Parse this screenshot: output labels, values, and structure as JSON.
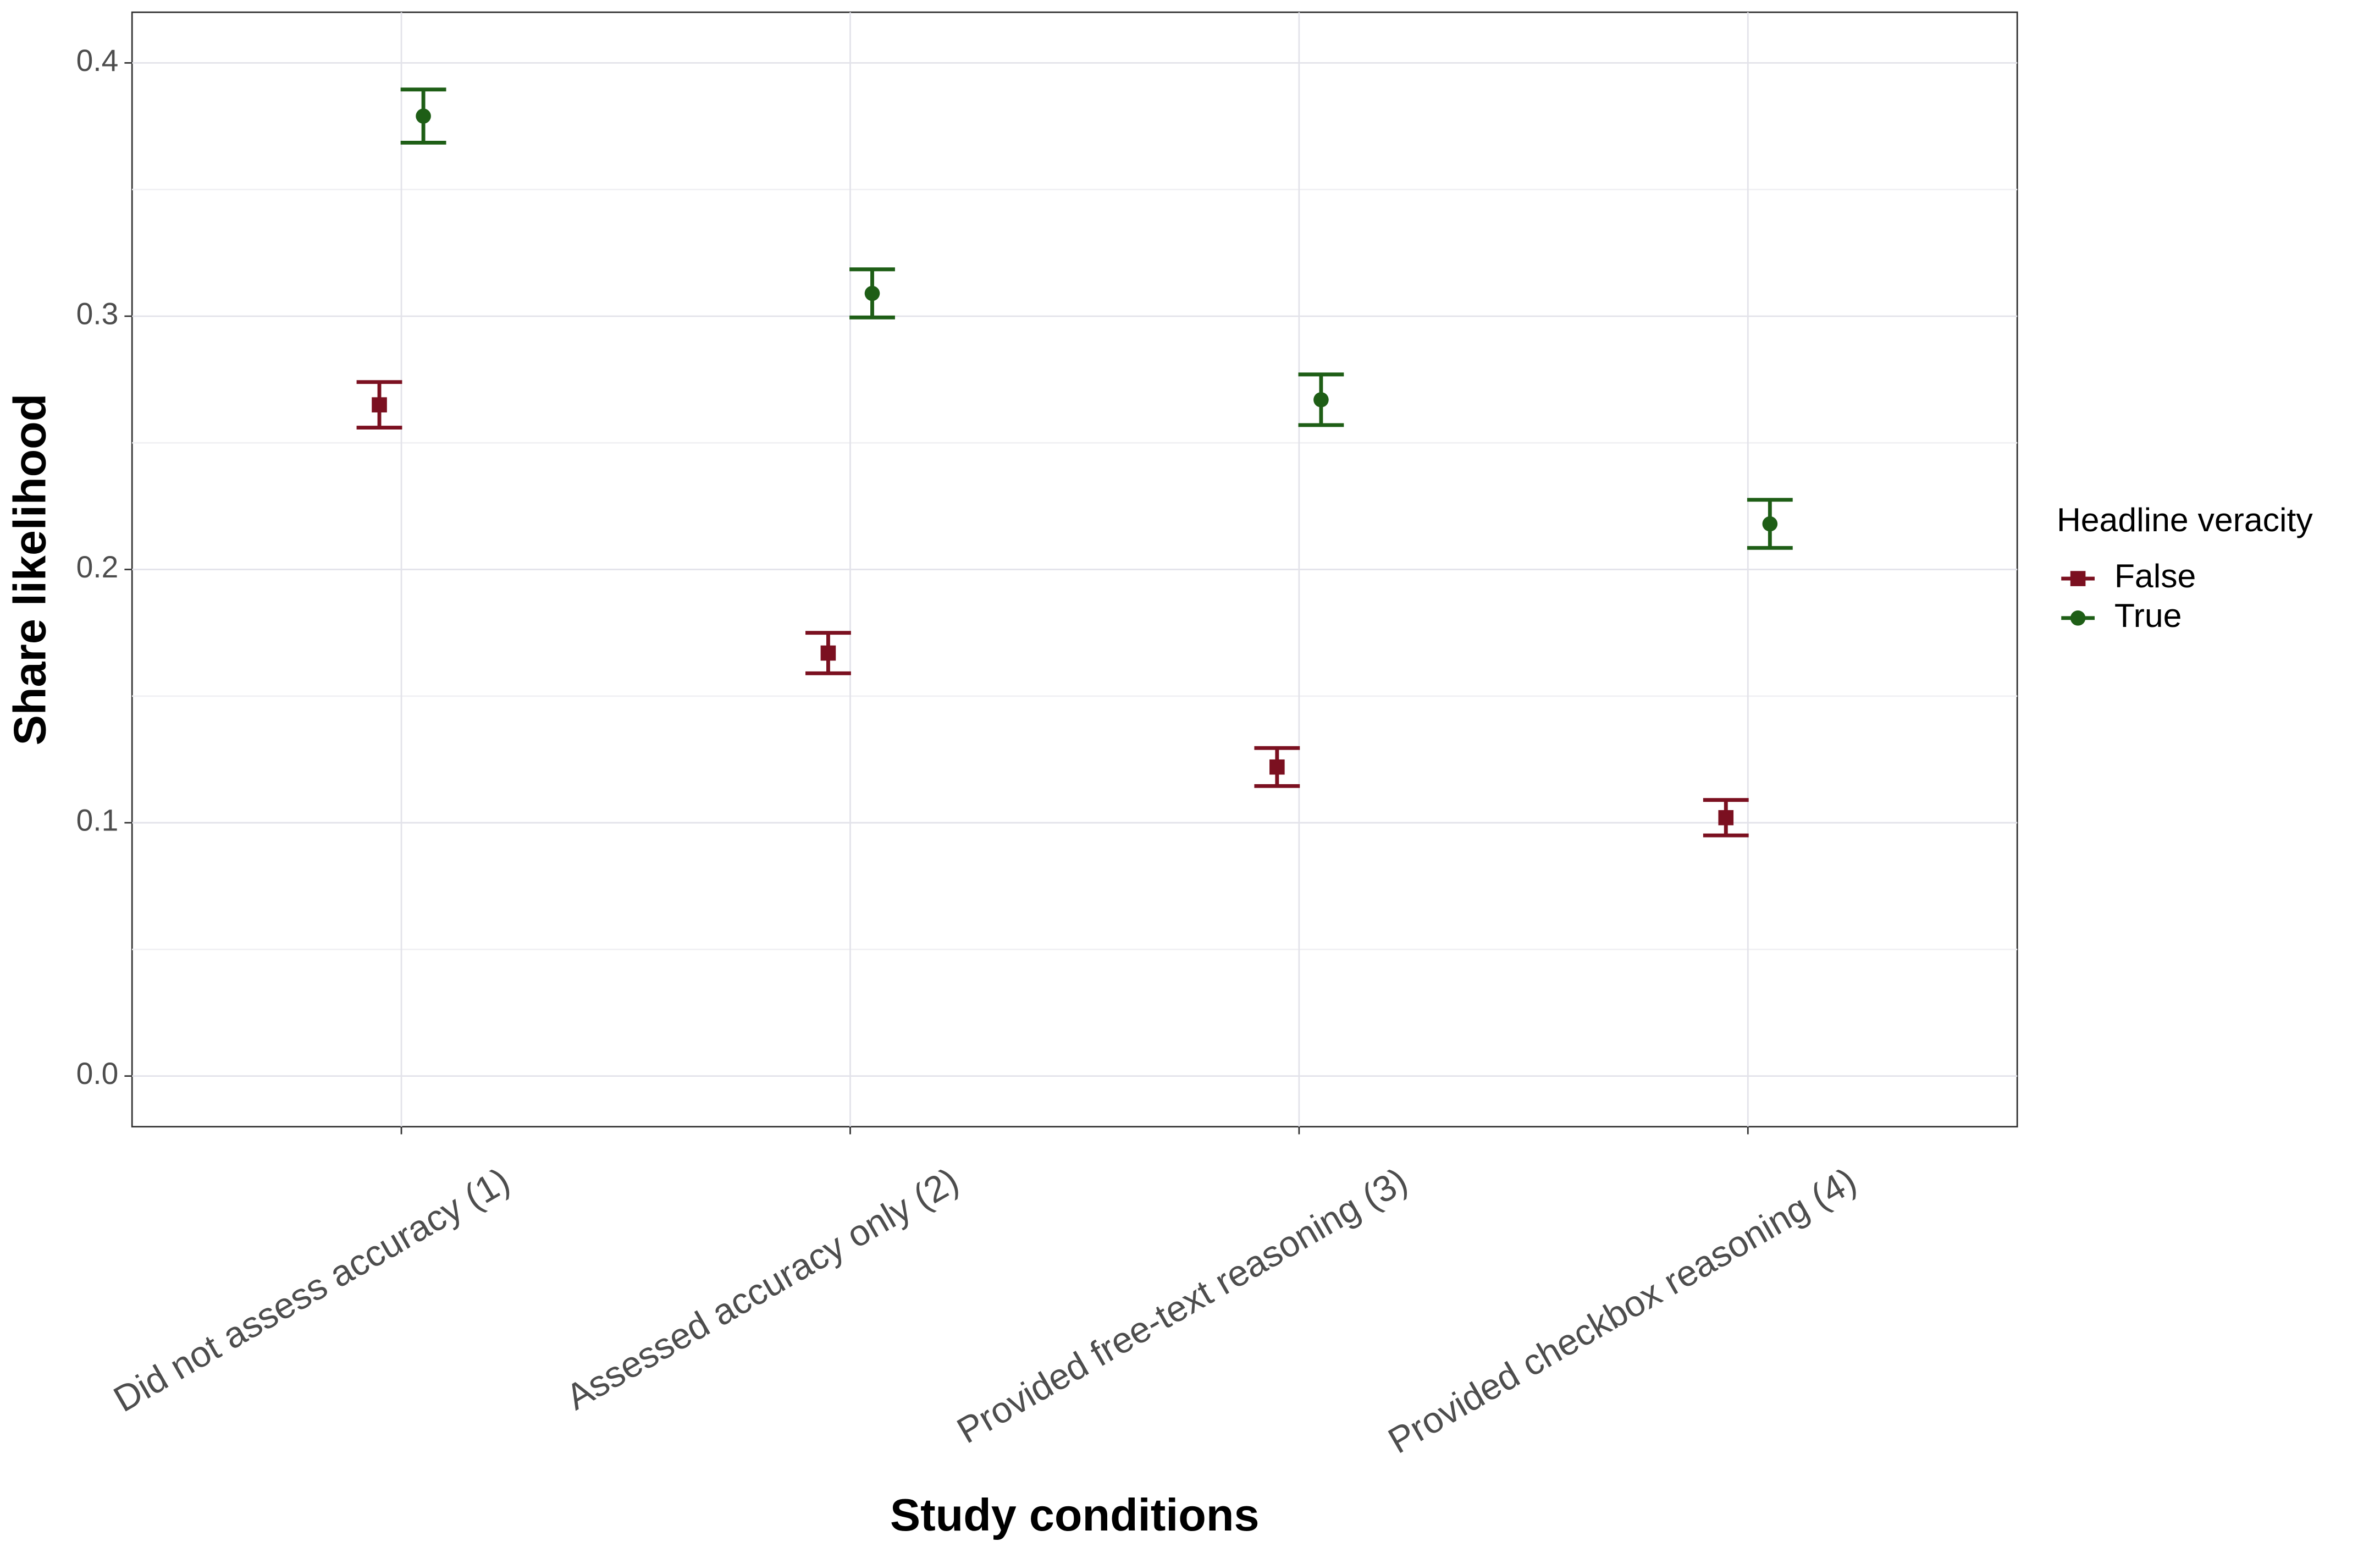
{
  "chart_data": {
    "type": "errorbar",
    "x_label": "Study conditions",
    "y_label": "Share likelihood",
    "categories": [
      "Did not assess accuracy (1)",
      "Assessed accuracy only (2)",
      "Provided free-text reasoning (3)",
      "Provided checkbox reasoning (4)"
    ],
    "legend_title": "Headline veracity",
    "legend_position": "right",
    "grid": true,
    "ylim": [
      -0.02,
      0.42
    ],
    "yticks": [
      {
        "value": 0,
        "label": "0.0"
      },
      0.1,
      0.2,
      0.3,
      0.4
    ],
    "series": [
      {
        "name": "False",
        "color": "#7b1020",
        "marker": "square",
        "values": [
          0.265,
          0.167,
          0.122,
          0.102
        ],
        "errors": [
          0.009,
          0.008,
          0.0075,
          0.007
        ]
      },
      {
        "name": "True",
        "color": "#1e5e16",
        "marker": "circle",
        "values": [
          0.379,
          0.309,
          0.267,
          0.218
        ],
        "errors": [
          0.0105,
          0.0095,
          0.01,
          0.0095
        ]
      }
    ]
  }
}
